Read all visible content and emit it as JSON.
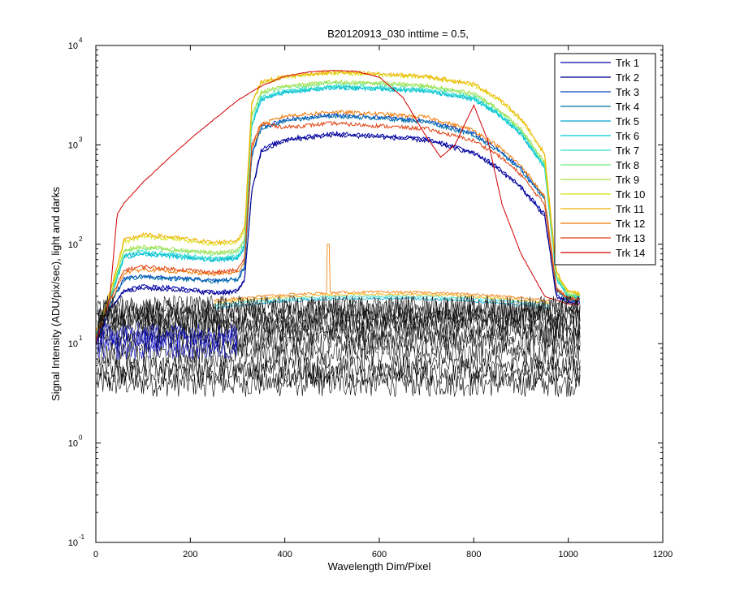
{
  "chart_data": {
    "type": "line",
    "title": "B20120913_030 inttime = 0.5,",
    "xlabel": "Wavelength Dim/Pixel",
    "ylabel": "Signal Intensity (ADU/pix/sec), light and darks",
    "xlim": [
      0,
      1200
    ],
    "ylim": [
      0.1,
      10000
    ],
    "yscale": "log",
    "grid": false,
    "legend_position": "top-right",
    "x_ticks": [
      {
        "value": 0,
        "label": "0"
      },
      {
        "value": 200,
        "label": "200"
      },
      {
        "value": 400,
        "label": "400"
      },
      {
        "value": 600,
        "label": "600"
      },
      {
        "value": 800,
        "label": "800"
      },
      {
        "value": 1000,
        "label": "1000"
      },
      {
        "value": 1200,
        "label": "1200"
      }
    ],
    "y_ticks": [
      {
        "value": 0.1,
        "base": "10",
        "exp": "-1"
      },
      {
        "value": 1,
        "base": "10",
        "exp": "0"
      },
      {
        "value": 10,
        "base": "10",
        "exp": "1"
      },
      {
        "value": 100,
        "base": "10",
        "exp": "2"
      },
      {
        "value": 1000,
        "base": "10",
        "exp": "3"
      },
      {
        "value": 10000,
        "base": "10",
        "exp": "4"
      }
    ],
    "series": [
      {
        "name": "Trk 1",
        "color": "#0000b0",
        "x": [
          0,
          30,
          60,
          100,
          150,
          200,
          250,
          300,
          315,
          330,
          350,
          400,
          500,
          600,
          700,
          800,
          850,
          900,
          950,
          975,
          1000,
          1025
        ],
        "y": [
          10,
          22,
          35,
          38,
          37,
          35,
          33,
          34,
          45,
          350,
          900,
          1150,
          1300,
          1250,
          1150,
          850,
          600,
          380,
          200,
          30,
          27,
          26
        ]
      },
      {
        "name": "Trk 2",
        "color": "#000090",
        "x": [
          0,
          30,
          60,
          100,
          150,
          200,
          250,
          300,
          315,
          330,
          350,
          400,
          500,
          600,
          700,
          800,
          850,
          900,
          950,
          975,
          1000,
          1025
        ],
        "y": [
          10,
          22,
          34,
          36,
          35,
          34,
          32,
          33,
          45,
          330,
          850,
          1100,
          1250,
          1200,
          1100,
          820,
          580,
          370,
          190,
          29,
          26,
          25
        ]
      },
      {
        "name": "Trk 3",
        "color": "#0040c0",
        "x": [
          0,
          30,
          60,
          100,
          150,
          200,
          250,
          300,
          315,
          330,
          350,
          400,
          500,
          600,
          700,
          800,
          850,
          900,
          950,
          975,
          1000,
          1025
        ],
        "y": [
          10,
          25,
          45,
          48,
          46,
          45,
          43,
          45,
          60,
          800,
          1500,
          1800,
          2000,
          1900,
          1750,
          1300,
          900,
          580,
          290,
          35,
          28,
          27
        ]
      },
      {
        "name": "Trk 4",
        "color": "#0070a8",
        "x": [
          0,
          30,
          60,
          100,
          150,
          200,
          250,
          300,
          315,
          330,
          350,
          400,
          500,
          600,
          700,
          800,
          850,
          900,
          950,
          975,
          1000,
          1025
        ],
        "y": [
          10,
          25,
          44,
          47,
          45,
          44,
          42,
          44,
          58,
          780,
          1450,
          1750,
          1950,
          1850,
          1700,
          1250,
          880,
          560,
          280,
          34,
          28,
          27
        ]
      },
      {
        "name": "Trk 5",
        "color": "#00a8c8",
        "x": [
          0,
          30,
          60,
          100,
          150,
          200,
          250,
          300,
          315,
          330,
          350,
          400,
          500,
          600,
          700,
          800,
          850,
          900,
          950,
          975,
          1000,
          1025
        ],
        "y": [
          12,
          28,
          75,
          82,
          78,
          74,
          70,
          74,
          95,
          1600,
          2900,
          3400,
          3800,
          3700,
          3500,
          2900,
          2100,
          1300,
          600,
          45,
          30,
          29
        ]
      },
      {
        "name": "Trk 6",
        "color": "#00c8d8",
        "x": [
          0,
          30,
          60,
          100,
          150,
          200,
          250,
          300,
          315,
          330,
          350,
          400,
          500,
          600,
          700,
          800,
          850,
          900,
          950,
          975,
          1000,
          1025
        ],
        "y": [
          12,
          28,
          73,
          80,
          76,
          72,
          68,
          72,
          92,
          1550,
          2850,
          3350,
          3750,
          3650,
          3450,
          2850,
          2050,
          1280,
          590,
          44,
          30,
          29
        ]
      },
      {
        "name": "Trk 7",
        "color": "#30e0d0",
        "x": [
          0,
          30,
          60,
          100,
          150,
          200,
          250,
          300,
          315,
          330,
          350,
          400,
          500,
          600,
          700,
          800,
          850,
          900,
          950,
          975,
          1000,
          1025
        ],
        "y": [
          12,
          29,
          78,
          85,
          80,
          76,
          72,
          76,
          98,
          1650,
          3000,
          3500,
          3900,
          3800,
          3600,
          3000,
          2150,
          1350,
          620,
          46,
          31,
          30
        ]
      },
      {
        "name": "Trk 8",
        "color": "#70e880",
        "x": [
          0,
          30,
          60,
          100,
          150,
          200,
          250,
          300,
          315,
          330,
          350,
          400,
          500,
          600,
          700,
          800,
          850,
          900,
          950,
          975,
          1000,
          1025
        ],
        "y": [
          12,
          30,
          85,
          92,
          88,
          84,
          80,
          84,
          110,
          1900,
          3300,
          3800,
          4200,
          4100,
          3850,
          3200,
          2300,
          1400,
          650,
          48,
          31,
          30
        ]
      },
      {
        "name": "Trk 9",
        "color": "#a8e048",
        "x": [
          0,
          30,
          60,
          100,
          150,
          200,
          250,
          300,
          315,
          330,
          350,
          400,
          500,
          600,
          700,
          800,
          850,
          900,
          950,
          975,
          1000,
          1025
        ],
        "y": [
          12,
          30,
          88,
          95,
          90,
          86,
          82,
          86,
          115,
          2000,
          3400,
          3900,
          4300,
          4200,
          3950,
          3300,
          2350,
          1450,
          670,
          49,
          32,
          31
        ]
      },
      {
        "name": "Trk 10",
        "color": "#d8e010",
        "x": [
          0,
          30,
          60,
          100,
          150,
          200,
          250,
          300,
          315,
          330,
          350,
          400,
          500,
          600,
          700,
          800,
          850,
          900,
          950,
          975,
          1000,
          1025
        ],
        "y": [
          13,
          32,
          105,
          120,
          115,
          108,
          100,
          105,
          140,
          2600,
          4200,
          4800,
          5300,
          5100,
          4800,
          4000,
          2900,
          1800,
          800,
          52,
          33,
          32
        ]
      },
      {
        "name": "Trk 11",
        "color": "#f0b000",
        "x": [
          0,
          30,
          60,
          100,
          150,
          200,
          250,
          300,
          315,
          330,
          350,
          400,
          500,
          600,
          700,
          800,
          850,
          900,
          950,
          975,
          1000,
          1025
        ],
        "y": [
          13,
          33,
          110,
          125,
          120,
          112,
          104,
          110,
          145,
          2700,
          4300,
          4900,
          5400,
          5200,
          4900,
          4100,
          3000,
          1850,
          820,
          53,
          33,
          32
        ]
      },
      {
        "name": "Trk 12",
        "color": "#f07800",
        "x": [
          0,
          30,
          60,
          100,
          150,
          200,
          250,
          300,
          315,
          330,
          350,
          400,
          500,
          600,
          700,
          800,
          850,
          900,
          950,
          975,
          1000,
          1025
        ],
        "y": [
          11,
          26,
          52,
          56,
          54,
          52,
          50,
          52,
          68,
          900,
          1600,
          1950,
          2150,
          2050,
          1900,
          1400,
          980,
          620,
          300,
          36,
          29,
          28
        ]
      },
      {
        "name": "Trk 13",
        "color": "#e04010",
        "x": [
          0,
          30,
          60,
          100,
          150,
          200,
          250,
          300,
          315,
          330,
          350,
          400,
          500,
          600,
          700,
          800,
          850,
          900,
          950,
          975,
          1000,
          1025
        ],
        "y": [
          11,
          27,
          55,
          60,
          57,
          55,
          52,
          55,
          72,
          1000,
          1650,
          1500,
          1650,
          1550,
          1450,
          1100,
          800,
          500,
          250,
          35,
          29,
          28
        ]
      },
      {
        "name": "Trk 14",
        "color": "#d00000",
        "x": [
          0,
          30,
          45,
          60,
          100,
          150,
          200,
          250,
          300,
          350,
          400,
          450,
          500,
          550,
          600,
          650,
          700,
          730,
          760,
          800,
          830,
          860,
          900,
          950,
          1000,
          1025
        ],
        "y": [
          10,
          30,
          200,
          260,
          420,
          700,
          1150,
          1800,
          2800,
          3900,
          4900,
          5400,
          5600,
          5500,
          4800,
          3000,
          1200,
          750,
          1000,
          2500,
          1100,
          250,
          80,
          30,
          25,
          25
        ]
      }
    ]
  }
}
